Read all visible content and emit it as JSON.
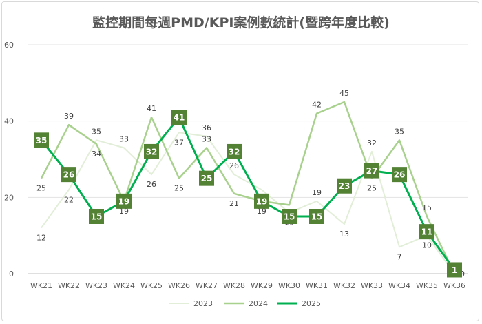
{
  "chart_data": {
    "type": "line",
    "title": "監控期間每週PMD/KPI案例數統計(暨跨年度比較)",
    "categories": [
      "WK21",
      "WK22",
      "WK23",
      "WK24",
      "WK25",
      "WK26",
      "WK27",
      "WK28",
      "WK29",
      "WK30",
      "WK31",
      "WK32",
      "WK33",
      "WK34",
      "WK35",
      "WK36"
    ],
    "ylim": [
      0,
      60
    ],
    "yticks": [
      0,
      20,
      40,
      60
    ],
    "grid": true,
    "legend_position": "bottom",
    "series": [
      {
        "name": "2023",
        "color": "#e2eed8",
        "values": [
          12,
          22,
          35,
          33,
          26,
          37,
          36,
          26,
          22,
          16,
          19,
          13,
          32,
          7,
          10,
          0
        ]
      },
      {
        "name": "2024",
        "color": "#a9d18e",
        "values": [
          25,
          39,
          34,
          19,
          41,
          25,
          33,
          21,
          19,
          18,
          42,
          45,
          25,
          35,
          15,
          0
        ]
      },
      {
        "name": "2025",
        "color": "#00b050",
        "label_bg": "#548235",
        "values": [
          35,
          26,
          15,
          19,
          32,
          41,
          25,
          32,
          19,
          15,
          15,
          23,
          27,
          26,
          11,
          1
        ]
      }
    ]
  }
}
